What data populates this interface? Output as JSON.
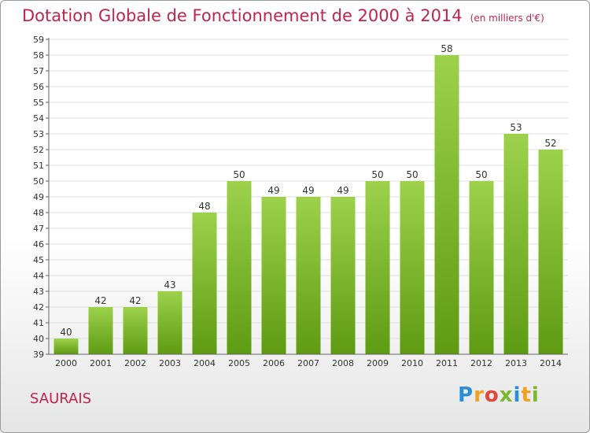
{
  "chart_data": {
    "type": "bar",
    "title": "Dotation Globale de Fonctionnement de 2000 à 2014",
    "subtitle": "(en milliers d'€)",
    "categories": [
      "2000",
      "2001",
      "2002",
      "2003",
      "2004",
      "2005",
      "2006",
      "2007",
      "2008",
      "2009",
      "2010",
      "2011",
      "2012",
      "2013",
      "2014"
    ],
    "values": [
      40,
      42,
      42,
      43,
      48,
      50,
      49,
      49,
      49,
      50,
      50,
      58,
      50,
      53,
      52
    ],
    "ylim": [
      39,
      59
    ],
    "ytick_step": 1,
    "grid": true,
    "bar_color_top": "#9dd14c",
    "bar_color_bottom": "#5e9b12",
    "text_color": "#c0244e"
  },
  "commune": "SAURAIS",
  "logo": {
    "text": "Proxiti",
    "colors": [
      "#2c8fd6",
      "#f0a11e",
      "#e0483a",
      "#7ab82f",
      "#2c8fd6",
      "#f0a11e",
      "#7ab82f"
    ]
  }
}
